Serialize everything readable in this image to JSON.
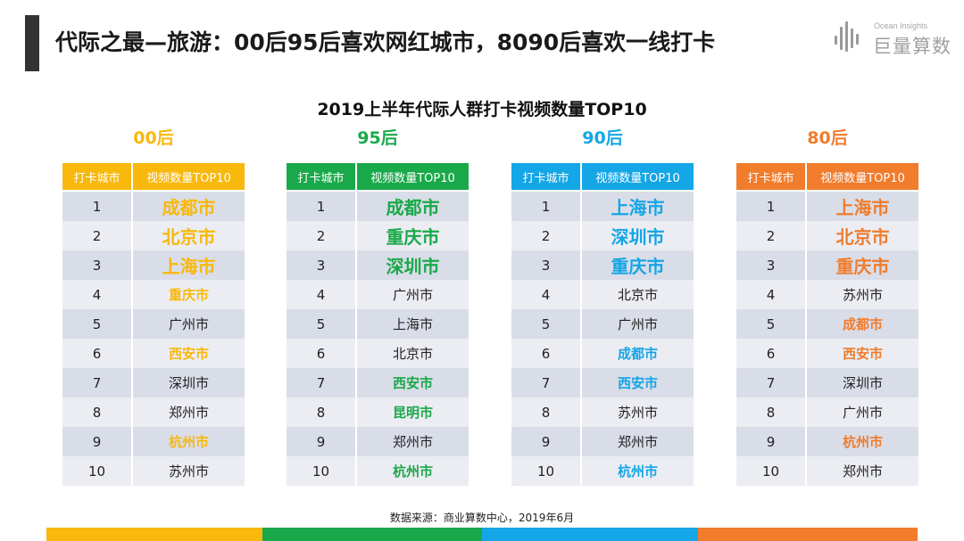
{
  "header": {
    "title": "代际之最—旅游：00后95后喜欢网红城市，8090后喜欢一线打卡"
  },
  "logo": {
    "en": "Ocean Insights",
    "cn": "巨量算数"
  },
  "subtitle": "2019上半年代际人群打卡视频数量TOP10",
  "table_headers": {
    "col1": "打卡城市",
    "col2": "视频数量TOP10"
  },
  "groups": [
    {
      "name": "00后",
      "color": "#f8b80c",
      "rows": [
        {
          "rank": "1",
          "city": "成都市",
          "style": "big-color"
        },
        {
          "rank": "2",
          "city": "北京市",
          "style": "big-color"
        },
        {
          "rank": "3",
          "city": "上海市",
          "style": "big-color"
        },
        {
          "rank": "4",
          "city": "重庆市",
          "style": "mid-color"
        },
        {
          "rank": "5",
          "city": "广州市",
          "style": "plain"
        },
        {
          "rank": "6",
          "city": "西安市",
          "style": "mid-color"
        },
        {
          "rank": "7",
          "city": "深圳市",
          "style": "plain"
        },
        {
          "rank": "8",
          "city": "郑州市",
          "style": "plain"
        },
        {
          "rank": "9",
          "city": "杭州市",
          "style": "mid-color"
        },
        {
          "rank": "10",
          "city": "苏州市",
          "style": "plain"
        }
      ]
    },
    {
      "name": "95后",
      "color": "#1aa94a",
      "rows": [
        {
          "rank": "1",
          "city": "成都市",
          "style": "big-color"
        },
        {
          "rank": "2",
          "city": "重庆市",
          "style": "big-color"
        },
        {
          "rank": "3",
          "city": "深圳市",
          "style": "big-color"
        },
        {
          "rank": "4",
          "city": "广州市",
          "style": "plain"
        },
        {
          "rank": "5",
          "city": "上海市",
          "style": "plain"
        },
        {
          "rank": "6",
          "city": "北京市",
          "style": "plain"
        },
        {
          "rank": "7",
          "city": "西安市",
          "style": "mid-color"
        },
        {
          "rank": "8",
          "city": "昆明市",
          "style": "mid-color"
        },
        {
          "rank": "9",
          "city": "郑州市",
          "style": "plain"
        },
        {
          "rank": "10",
          "city": "杭州市",
          "style": "mid-color"
        }
      ]
    },
    {
      "name": "90后",
      "color": "#14a6e6",
      "rows": [
        {
          "rank": "1",
          "city": "上海市",
          "style": "big-color"
        },
        {
          "rank": "2",
          "city": "深圳市",
          "style": "big-color"
        },
        {
          "rank": "3",
          "city": "重庆市",
          "style": "big-color"
        },
        {
          "rank": "4",
          "city": "北京市",
          "style": "plain"
        },
        {
          "rank": "5",
          "city": "广州市",
          "style": "plain"
        },
        {
          "rank": "6",
          "city": "成都市",
          "style": "mid-color"
        },
        {
          "rank": "7",
          "city": "西安市",
          "style": "mid-color"
        },
        {
          "rank": "8",
          "city": "苏州市",
          "style": "plain"
        },
        {
          "rank": "9",
          "city": "郑州市",
          "style": "plain"
        },
        {
          "rank": "10",
          "city": "杭州市",
          "style": "mid-color"
        }
      ]
    },
    {
      "name": "80后",
      "color": "#f07c2c",
      "rows": [
        {
          "rank": "1",
          "city": "上海市",
          "style": "big-color"
        },
        {
          "rank": "2",
          "city": "北京市",
          "style": "big-color"
        },
        {
          "rank": "3",
          "city": "重庆市",
          "style": "big-color"
        },
        {
          "rank": "4",
          "city": "苏州市",
          "style": "plain"
        },
        {
          "rank": "5",
          "city": "成都市",
          "style": "mid-color"
        },
        {
          "rank": "6",
          "city": "西安市",
          "style": "mid-color"
        },
        {
          "rank": "7",
          "city": "深圳市",
          "style": "plain"
        },
        {
          "rank": "8",
          "city": "广州市",
          "style": "plain"
        },
        {
          "rank": "9",
          "city": "杭州市",
          "style": "mid-color"
        },
        {
          "rank": "10",
          "city": "郑州市",
          "style": "plain"
        }
      ]
    }
  ],
  "source": "数据来源：商业算数中心，2019年6月",
  "bottom_bar_colors": [
    "#f8b80c",
    "#1aa94a",
    "#14a6e6",
    "#f07c2c"
  ]
}
